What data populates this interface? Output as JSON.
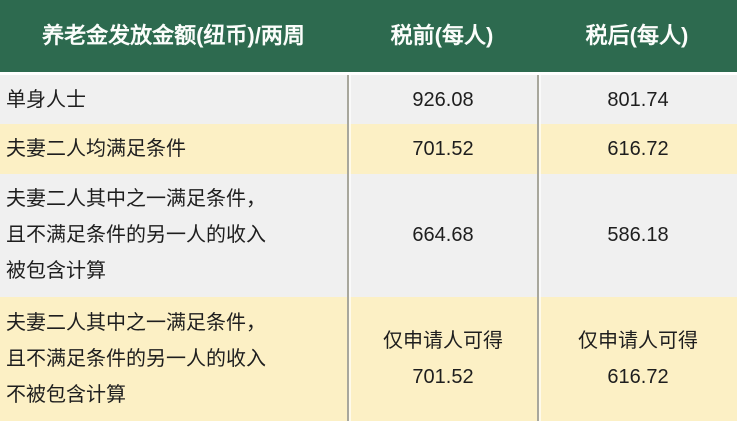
{
  "table": {
    "columns": [
      {
        "label": "养老金发放金额(纽币)/两周"
      },
      {
        "label": "税前(每人)"
      },
      {
        "label": "税后(每人)"
      }
    ],
    "rows": [
      {
        "category": "单身人士",
        "pre_tax": "926.08",
        "post_tax": "801.74"
      },
      {
        "category": "夫妻二人均满足条件",
        "pre_tax": "701.52",
        "post_tax": "616.72"
      },
      {
        "category": [
          "夫妻二人其中之一满足条件，",
          "且不满足条件的另一人的收入",
          "被包含计算"
        ],
        "pre_tax": "664.68",
        "post_tax": "586.18"
      },
      {
        "category": [
          "夫妻二人其中之一满足条件，",
          "且不满足条件的另一人的收入",
          "不被包含计算"
        ],
        "pre_tax": [
          "仅申请人可得",
          "701.52"
        ],
        "post_tax": [
          "仅申请人可得",
          "616.72"
        ]
      }
    ]
  },
  "colors": {
    "header_bg": "#2d6a4f",
    "header_text": "#fbfdfb",
    "row_gray": "#f0f0f0",
    "row_yellow": "#fcf0c5",
    "body_text": "#1e1e1e",
    "column_divider": "#a8a79c"
  }
}
